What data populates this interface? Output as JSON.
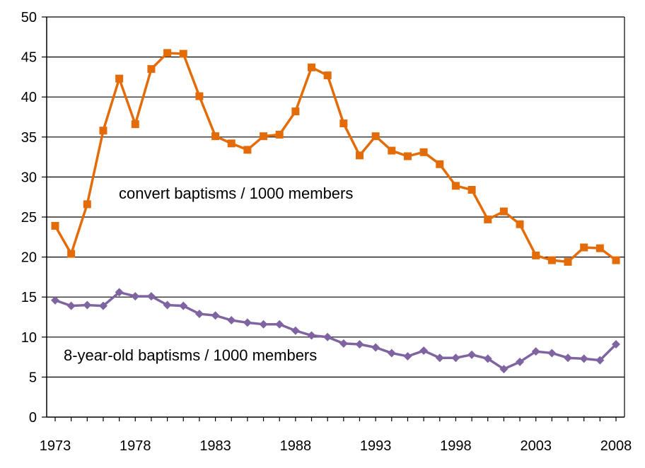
{
  "chart_data": {
    "type": "line",
    "x": [
      1973,
      1974,
      1975,
      1976,
      1977,
      1978,
      1979,
      1980,
      1981,
      1982,
      1983,
      1984,
      1985,
      1986,
      1987,
      1988,
      1989,
      1990,
      1991,
      1992,
      1993,
      1994,
      1995,
      1996,
      1997,
      1998,
      1999,
      2000,
      2001,
      2002,
      2003,
      2004,
      2005,
      2006,
      2007,
      2008
    ],
    "x_ticks": [
      "1973",
      "1978",
      "1983",
      "1988",
      "1993",
      "1998",
      "2003",
      "2008"
    ],
    "y_ticks": [
      "0",
      "5",
      "10",
      "15",
      "20",
      "25",
      "30",
      "35",
      "40",
      "45",
      "50"
    ],
    "ylim": [
      0,
      50
    ],
    "grid": "horizontal",
    "title": "",
    "xlabel": "",
    "ylabel": "",
    "series": [
      {
        "name": "convert baptisms / 1000 members",
        "color": "#E36C09",
        "marker": "square",
        "values": [
          23.9,
          20.4,
          26.6,
          35.8,
          42.3,
          36.6,
          43.5,
          45.5,
          45.4,
          40.1,
          35.1,
          34.2,
          33.4,
          35.1,
          35.3,
          38.2,
          43.7,
          42.7,
          36.7,
          32.7,
          35.1,
          33.3,
          32.6,
          33.1,
          31.6,
          28.9,
          28.4,
          24.7,
          25.7,
          24.1,
          20.2,
          19.6,
          19.4,
          21.2,
          21.1,
          19.6
        ]
      },
      {
        "name": "8-year-old baptisms / 1000 members",
        "color": "#8064A2",
        "marker": "diamond",
        "values": [
          14.6,
          13.9,
          14.0,
          13.9,
          15.6,
          15.1,
          15.1,
          14.0,
          13.9,
          12.9,
          12.7,
          12.1,
          11.8,
          11.6,
          11.6,
          10.8,
          10.2,
          10.0,
          9.2,
          9.1,
          8.7,
          8.0,
          7.6,
          8.3,
          7.4,
          7.4,
          7.8,
          7.3,
          6.0,
          6.9,
          8.2,
          8.0,
          7.4,
          7.3,
          7.1,
          9.1
        ]
      }
    ]
  }
}
